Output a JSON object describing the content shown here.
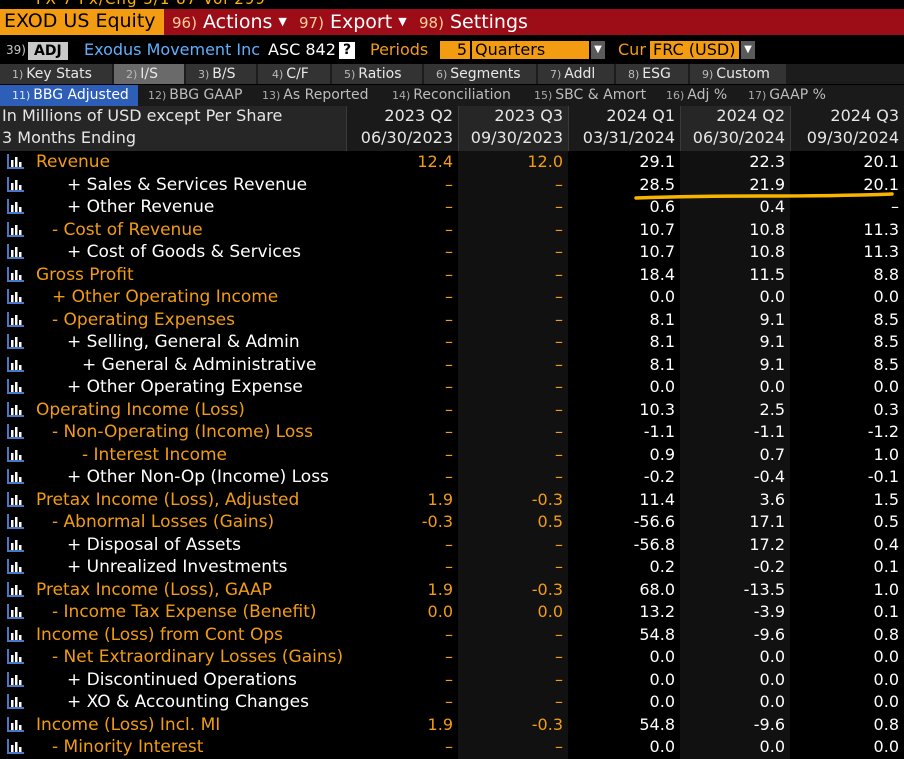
{
  "header": {
    "clipped_text": "FX 7  Px/Chg  5/1 87   Vol  299",
    "ticker": "EXOD US Equity",
    "menu": [
      {
        "num": "96)",
        "label": "Actions"
      },
      {
        "num": "97)",
        "label": "Export"
      },
      {
        "num": "98)",
        "label": "Settings"
      }
    ]
  },
  "security": {
    "num": "39)",
    "adj_label": "ADJ",
    "name": "Exodus Movement Inc",
    "standard": "ASC 842",
    "help": "?",
    "periods_label": "Periods",
    "periods_value": "5",
    "period_type": "Quarters",
    "cur_label": "Cur",
    "currency": "FRC (USD)"
  },
  "tabs_primary": [
    {
      "num": "1)",
      "label": "Key Stats"
    },
    {
      "num": "2)",
      "label": "I/S"
    },
    {
      "num": "3)",
      "label": "B/S"
    },
    {
      "num": "4)",
      "label": "C/F"
    },
    {
      "num": "5)",
      "label": "Ratios"
    },
    {
      "num": "6)",
      "label": "Segments"
    },
    {
      "num": "7)",
      "label": "Addl"
    },
    {
      "num": "8)",
      "label": "ESG"
    },
    {
      "num": "9)",
      "label": "Custom"
    }
  ],
  "tabs_secondary": [
    {
      "num": "11)",
      "label": "BBG Adjusted"
    },
    {
      "num": "12)",
      "label": "BBG GAAP"
    },
    {
      "num": "13)",
      "label": "As Reported"
    },
    {
      "num": "14)",
      "label": "Reconciliation"
    },
    {
      "num": "15)",
      "label": "SBC & Amort"
    },
    {
      "num": "16)",
      "label": "Adj %"
    },
    {
      "num": "17)",
      "label": "GAAP %"
    }
  ],
  "table": {
    "units": "In Millions of USD except Per Share",
    "period_basis": "3 Months Ending",
    "columns": [
      {
        "period": "2023 Q2",
        "date": "06/30/2023"
      },
      {
        "period": "2023 Q3",
        "date": "09/30/2023"
      },
      {
        "period": "2024 Q1",
        "date": "03/31/2024"
      },
      {
        "period": "2024 Q2",
        "date": "06/30/2024"
      },
      {
        "period": "2024 Q3",
        "date": "09/30/2024"
      }
    ],
    "rows": [
      {
        "label": "Revenue",
        "values": [
          "12.4",
          "12.0",
          "29.1",
          "22.3",
          "20.1"
        ]
      },
      {
        "label": "+ Sales & Services Revenue",
        "values": [
          "–",
          "–",
          "28.5",
          "21.9",
          "20.1"
        ]
      },
      {
        "label": "+ Other Revenue",
        "values": [
          "–",
          "–",
          "0.6",
          "0.4",
          "–"
        ]
      },
      {
        "label": "- Cost of Revenue",
        "values": [
          "–",
          "–",
          "10.7",
          "10.8",
          "11.3"
        ]
      },
      {
        "label": "+ Cost of Goods & Services",
        "values": [
          "–",
          "–",
          "10.7",
          "10.8",
          "11.3"
        ]
      },
      {
        "label": "Gross Profit",
        "values": [
          "–",
          "–",
          "18.4",
          "11.5",
          "8.8"
        ]
      },
      {
        "label": "+ Other Operating Income",
        "values": [
          "–",
          "–",
          "0.0",
          "0.0",
          "0.0"
        ]
      },
      {
        "label": "- Operating Expenses",
        "values": [
          "–",
          "–",
          "8.1",
          "9.1",
          "8.5"
        ]
      },
      {
        "label": "+ Selling, General & Admin",
        "values": [
          "–",
          "–",
          "8.1",
          "9.1",
          "8.5"
        ]
      },
      {
        "label": "+ General & Administrative",
        "values": [
          "–",
          "–",
          "8.1",
          "9.1",
          "8.5"
        ]
      },
      {
        "label": "+ Other Operating Expense",
        "values": [
          "–",
          "–",
          "0.0",
          "0.0",
          "0.0"
        ]
      },
      {
        "label": "Operating Income (Loss)",
        "values": [
          "–",
          "–",
          "10.3",
          "2.5",
          "0.3"
        ]
      },
      {
        "label": "- Non-Operating (Income) Loss",
        "values": [
          "–",
          "–",
          "-1.1",
          "-1.1",
          "-1.2"
        ]
      },
      {
        "label": "- Interest Income",
        "values": [
          "–",
          "–",
          "0.9",
          "0.7",
          "1.0"
        ]
      },
      {
        "label": "+ Other Non-Op (Income) Loss",
        "values": [
          "–",
          "–",
          "-0.2",
          "-0.4",
          "-0.1"
        ]
      },
      {
        "label": "Pretax Income (Loss), Adjusted",
        "values": [
          "1.9",
          "-0.3",
          "11.4",
          "3.6",
          "1.5"
        ]
      },
      {
        "label": "- Abnormal Losses (Gains)",
        "values": [
          "-0.3",
          "0.5",
          "-56.6",
          "17.1",
          "0.5"
        ]
      },
      {
        "label": "+ Disposal of Assets",
        "values": [
          "–",
          "–",
          "-56.8",
          "17.2",
          "0.4"
        ]
      },
      {
        "label": "+ Unrealized Investments",
        "values": [
          "–",
          "–",
          "0.2",
          "-0.2",
          "0.1"
        ]
      },
      {
        "label": "Pretax Income (Loss), GAAP",
        "values": [
          "1.9",
          "-0.3",
          "68.0",
          "-13.5",
          "1.0"
        ]
      },
      {
        "label": "- Income Tax Expense (Benefit)",
        "values": [
          "0.0",
          "0.0",
          "13.2",
          "-3.9",
          "0.1"
        ]
      },
      {
        "label": "Income (Loss) from Cont Ops",
        "values": [
          "–",
          "–",
          "54.8",
          "-9.6",
          "0.8"
        ]
      },
      {
        "label": "- Net Extraordinary Losses (Gains)",
        "values": [
          "–",
          "–",
          "0.0",
          "0.0",
          "0.0"
        ]
      },
      {
        "label": "+ Discontinued Operations",
        "values": [
          "–",
          "–",
          "0.0",
          "0.0",
          "0.0"
        ]
      },
      {
        "label": "+ XO & Accounting Changes",
        "values": [
          "–",
          "–",
          "0.0",
          "0.0",
          "0.0"
        ]
      },
      {
        "label": "Income (Loss) Incl. MI",
        "values": [
          "1.9",
          "-0.3",
          "54.8",
          "-9.6",
          "0.8"
        ]
      },
      {
        "label": "- Minority Interest",
        "values": [
          "–",
          "–",
          "0.0",
          "0.0",
          "0.0"
        ]
      }
    ]
  },
  "colors": {
    "accent_orange": "#f39c12",
    "title_red": "#9c0d18",
    "active_tab_blue": "#2d5fb8",
    "annotation_yellow": "#f7b500",
    "icon_blue": "#4a78c8"
  }
}
